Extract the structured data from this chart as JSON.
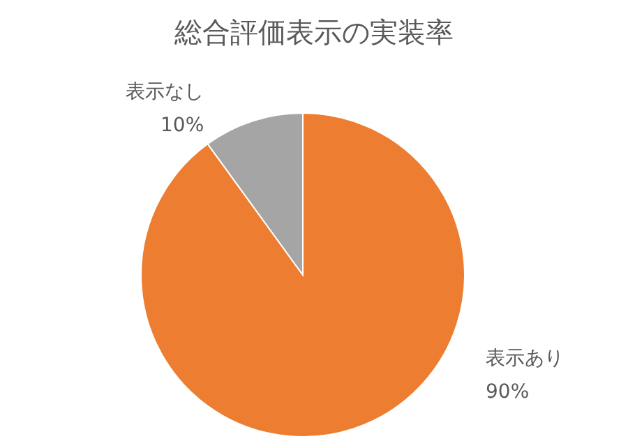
{
  "chart_data": {
    "type": "pie",
    "title": "総合評価表示の実装率",
    "categories": [
      "表示あり",
      "表示なし"
    ],
    "values": [
      90,
      10
    ],
    "colors": [
      "#ed7d31",
      "#a5a5a5"
    ],
    "value_labels": [
      "90%",
      "10%"
    ],
    "legend": false
  }
}
